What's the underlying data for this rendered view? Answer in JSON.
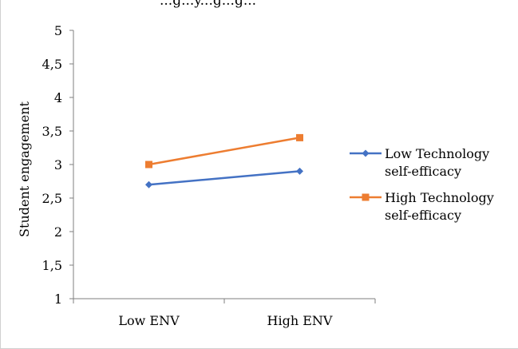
{
  "caption_fragment": "...g...y...g...g...",
  "chart_data": {
    "type": "line",
    "categories": [
      "Low ENV",
      "High ENV"
    ],
    "series": [
      {
        "name_lines": [
          "Low Technology",
          "self-efficacy"
        ],
        "name": "Low Technology self-efficacy",
        "values": [
          2.7,
          2.9
        ],
        "color": "#4472c4",
        "marker": "diamond"
      },
      {
        "name_lines": [
          "High Technology",
          "self-efficacy"
        ],
        "name": "High Technology self-efficacy",
        "values": [
          3.0,
          3.4
        ],
        "color": "#ed7d31",
        "marker": "square"
      }
    ],
    "ylabel": "Student engagement",
    "xlabel": "",
    "ylim": [
      1,
      5
    ],
    "yticks": [
      "1",
      "1,5",
      "2",
      "2,5",
      "3",
      "3,5",
      "4",
      "4,5",
      "5"
    ],
    "ytick_values": [
      1,
      1.5,
      2,
      2.5,
      3,
      3.5,
      4,
      4.5,
      5
    ],
    "legend_position": "right",
    "grid": false
  }
}
